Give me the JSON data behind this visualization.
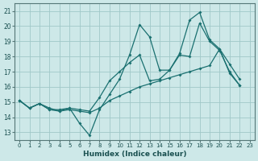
{
  "xlabel": "Humidex (Indice chaleur)",
  "xlim": [
    -0.5,
    23.5
  ],
  "ylim": [
    12.5,
    21.5
  ],
  "yticks": [
    13,
    14,
    15,
    16,
    17,
    18,
    19,
    20,
    21
  ],
  "xticks": [
    0,
    1,
    2,
    3,
    4,
    5,
    6,
    7,
    8,
    9,
    10,
    11,
    12,
    13,
    14,
    15,
    16,
    17,
    18,
    19,
    20,
    21,
    22,
    23
  ],
  "background_color": "#cde8e8",
  "grid_color": "#a0c8c8",
  "line_color": "#1a7070",
  "line1_y": [
    15.1,
    14.6,
    14.9,
    14.5,
    14.5,
    14.6,
    13.6,
    12.8,
    14.5,
    15.5,
    16.5,
    18.1,
    20.1,
    19.3,
    17.1,
    17.1,
    18.1,
    18.0,
    20.2,
    19.0,
    18.4,
    17.0,
    16.1,
    null
  ],
  "line2_y": [
    15.1,
    14.6,
    14.9,
    14.6,
    14.4,
    14.6,
    14.5,
    14.4,
    15.3,
    16.4,
    17.0,
    17.6,
    18.1,
    16.4,
    16.5,
    17.1,
    18.2,
    20.4,
    20.9,
    19.1,
    18.5,
    17.5,
    16.5,
    null
  ],
  "line3_y": [
    15.1,
    14.6,
    14.9,
    14.5,
    14.4,
    14.5,
    14.4,
    14.3,
    14.6,
    15.1,
    15.4,
    15.7,
    16.0,
    16.2,
    16.4,
    16.6,
    16.8,
    17.0,
    17.2,
    17.4,
    18.5,
    16.9,
    16.1,
    null
  ]
}
